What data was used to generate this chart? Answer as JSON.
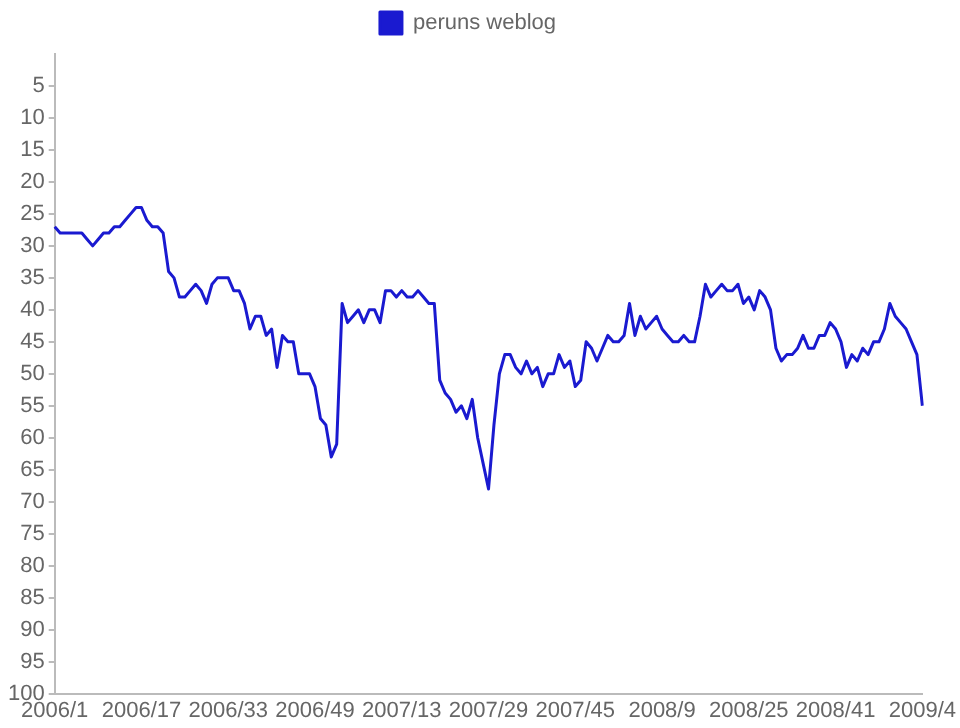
{
  "chart_data": {
    "type": "line",
    "categories": [
      "2006/1",
      null,
      null,
      null,
      null,
      null,
      null,
      null,
      null,
      null,
      null,
      null,
      null,
      null,
      null,
      null,
      "2006/17",
      null,
      null,
      null,
      null,
      null,
      null,
      null,
      null,
      null,
      null,
      null,
      null,
      null,
      null,
      null,
      "2006/33",
      null,
      null,
      null,
      null,
      null,
      null,
      null,
      null,
      null,
      null,
      null,
      null,
      null,
      null,
      null,
      "2006/49",
      null,
      null,
      null,
      null,
      null,
      null,
      null,
      null,
      null,
      null,
      null,
      null,
      null,
      null,
      null,
      "2007/13",
      null,
      null,
      null,
      null,
      null,
      null,
      null,
      null,
      null,
      null,
      null,
      null,
      null,
      null,
      null,
      "2007/29",
      null,
      null,
      null,
      null,
      null,
      null,
      null,
      null,
      null,
      null,
      null,
      null,
      null,
      null,
      null,
      "2007/45",
      null,
      null,
      null,
      null,
      null,
      null,
      null,
      null,
      null,
      null,
      null,
      null,
      null,
      null,
      null,
      "2008/9",
      null,
      null,
      null,
      null,
      null,
      null,
      null,
      null,
      null,
      null,
      null,
      null,
      null,
      null,
      null,
      "2008/25",
      null,
      null,
      null,
      null,
      null,
      null,
      null,
      null,
      null,
      null,
      null,
      null,
      null,
      null,
      null,
      "2008/41",
      null,
      null,
      null,
      null,
      null,
      null,
      null,
      null,
      null,
      null,
      null,
      null,
      null,
      null,
      null,
      "2009/4"
    ],
    "series": [
      {
        "name": "peruns weblog",
        "color": "#1a1ad0",
        "values": [
          27,
          28,
          28,
          28,
          28,
          28,
          29,
          30,
          29,
          28,
          28,
          27,
          27,
          26,
          25,
          24,
          24,
          26,
          27,
          27,
          28,
          34,
          35,
          38,
          38,
          37,
          36,
          37,
          39,
          36,
          35,
          35,
          35,
          37,
          37,
          39,
          43,
          41,
          41,
          44,
          43,
          49,
          44,
          45,
          45,
          50,
          50,
          50,
          52,
          57,
          58,
          63,
          61,
          39,
          42,
          41,
          40,
          42,
          40,
          40,
          42,
          37,
          37,
          38,
          37,
          38,
          38,
          37,
          38,
          39,
          39,
          51,
          53,
          54,
          56,
          55,
          57,
          54,
          60,
          64,
          68,
          58,
          50,
          47,
          47,
          49,
          50,
          48,
          50,
          49,
          52,
          50,
          50,
          47,
          49,
          48,
          52,
          51,
          45,
          46,
          48,
          46,
          44,
          45,
          45,
          44,
          39,
          44,
          41,
          43,
          42,
          41,
          43,
          44,
          45,
          45,
          44,
          45,
          45,
          41,
          36,
          38,
          37,
          36,
          37,
          37,
          36,
          39,
          38,
          40,
          37,
          38,
          40,
          46,
          48,
          47,
          47,
          46,
          44,
          46,
          46,
          44,
          44,
          42,
          43,
          45,
          49,
          47,
          48,
          46,
          47,
          45,
          45,
          43,
          39,
          41,
          42,
          43,
          45,
          47,
          55
        ]
      }
    ],
    "ylim": [
      100,
      0
    ],
    "yticks": [
      5,
      10,
      15,
      20,
      25,
      30,
      35,
      40,
      45,
      50,
      55,
      60,
      65,
      70,
      75,
      80,
      85,
      90,
      95,
      100
    ],
    "grid": false,
    "legend": "top",
    "marker": "none",
    "line_style": "solid"
  }
}
